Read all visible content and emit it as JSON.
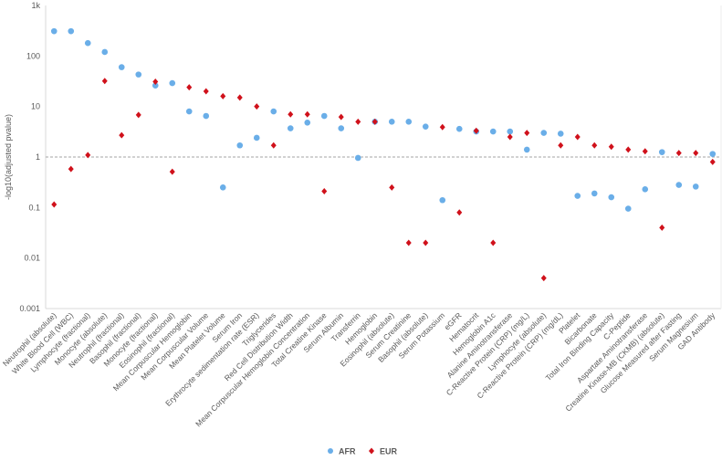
{
  "chart_data": {
    "type": "scatter",
    "title": "",
    "xlabel": "",
    "ylabel": "-log10(adjusted pvalue)",
    "yscale": "log",
    "ylim": [
      0.001,
      1000
    ],
    "yticks": [
      {
        "value": 1000,
        "label": "1k"
      },
      {
        "value": 100,
        "label": "100"
      },
      {
        "value": 10,
        "label": "10"
      },
      {
        "value": 1,
        "label": "1"
      },
      {
        "value": 0.1,
        "label": "0.1"
      },
      {
        "value": 0.01,
        "label": "0.01"
      },
      {
        "value": 0.001,
        "label": "0.001"
      }
    ],
    "reference_line": 1,
    "grid": false,
    "legend_position": "bottom",
    "categories": [
      "Neutrophil (absolute)",
      "White Blood Cell (WBC)",
      "Lymphocyte (fractional)",
      "Monocyte (absolute)",
      "Neutrophil (fractional)",
      "Basophil (fractional)",
      "Monocyte (fractional)",
      "Eosinophil (fractional)",
      "Mean Corpuscular Hemoglobin",
      "Mean Corpuscular Volume",
      "Mean Platelet Volume",
      "Serum Iron",
      "Erythrocyte sedimentation rate (ESR)",
      "Triglycerides",
      "Red Cell Distribution Width",
      "Mean Corpuscular Hemoglobin Concentration",
      "Total Creatine Kinase",
      "Serum Albumin",
      "Transferrin",
      "Hemoglobin",
      "Eosinophil (absolute)",
      "Serum Creatinine",
      "Basophil (absolute)",
      "Serum Potassium",
      "eGFR",
      "Hematocrit",
      "Hemoglobin A1c",
      "Alanine Aminotransferase",
      "C-Reactive Protein (CRP) (mg/L)",
      "Lymphocyte (absolute)",
      "C-Reactive Protein (CRP) (mg/dL)",
      "Platelet",
      "Bicarbonate",
      "Total Iron Binding Capacity",
      "C-Peptide",
      "Aspartate Aminotransferase",
      "Creatine Kinase-MB (CKMB) (absolute)",
      "Glucose Measured after Fasting",
      "Serum Magnesium",
      "GAD Antibody"
    ],
    "series": [
      {
        "name": "AFR",
        "color": "#6aaee8",
        "marker": "circle",
        "values": [
          310,
          310,
          180,
          120,
          60,
          43,
          26,
          29,
          8,
          6.5,
          0.25,
          1.7,
          2.4,
          8,
          3.7,
          4.8,
          6.5,
          3.7,
          0.96,
          5,
          5,
          5,
          4,
          0.14,
          3.6,
          3.2,
          3.2,
          3.2,
          1.4,
          3,
          2.9,
          0.17,
          0.19,
          0.16,
          0.095,
          0.23,
          1.25,
          0.28,
          0.26,
          1.15
        ]
      },
      {
        "name": "EUR",
        "color": "#d0111b",
        "marker": "diamond",
        "values": [
          0.115,
          0.58,
          1.09,
          32,
          2.7,
          6.8,
          31,
          0.51,
          24,
          20,
          16,
          15,
          10,
          1.7,
          7,
          7,
          0.21,
          6.2,
          5,
          5,
          0.25,
          0.02,
          0.02,
          3.9,
          0.08,
          3.3,
          0.02,
          2.5,
          3,
          0.004,
          1.7,
          2.5,
          1.7,
          1.6,
          1.4,
          1.3,
          0.04,
          1.2,
          1.2,
          0.8
        ]
      }
    ]
  }
}
